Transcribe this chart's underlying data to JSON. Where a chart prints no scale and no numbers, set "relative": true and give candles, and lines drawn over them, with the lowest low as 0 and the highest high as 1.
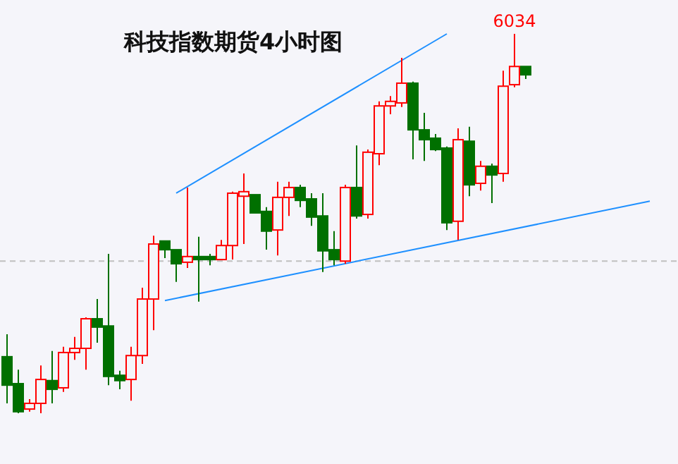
{
  "chart_data": {
    "type": "candlestick",
    "title": "科技指数期货4小时图",
    "relative": true,
    "categories": [
      null,
      null,
      null,
      null,
      null,
      null,
      null,
      null,
      null,
      null,
      null,
      null,
      null,
      null,
      null,
      null,
      null,
      null,
      null,
      null,
      null,
      null,
      null,
      null,
      null,
      null,
      null,
      null,
      null,
      null,
      null,
      null,
      null,
      null,
      null,
      null,
      null,
      null,
      null,
      null,
      null,
      null,
      null,
      null,
      null,
      null,
      null,
      null,
      null,
      null,
      null,
      null,
      null,
      null,
      null,
      null,
      null,
      null
    ],
    "ohlc": [
      [
        0.149,
        0.208,
        0.026,
        0.074
      ],
      [
        0.078,
        0.115,
        0,
        0.004
      ],
      [
        0.011,
        0.037,
        0.004,
        0.026
      ],
      [
        0.026,
        0.126,
        0,
        0.089
      ],
      [
        0.086,
        0.164,
        0.026,
        0.063
      ],
      [
        0.067,
        0.175,
        0.056,
        0.16
      ],
      [
        0.16,
        0.201,
        0.141,
        0.171
      ],
      [
        0.171,
        0.253,
        0.115,
        0.249
      ],
      [
        0.249,
        0.301,
        0.186,
        0.227
      ],
      [
        0.23,
        0.42,
        0.074,
        0.097
      ],
      [
        0.1,
        0.112,
        0.063,
        0.086
      ],
      [
        0.089,
        0.175,
        0.033,
        0.152
      ],
      [
        0.152,
        0.331,
        0.13,
        0.301
      ],
      [
        0.301,
        0.468,
        0.219,
        0.446
      ],
      [
        0.454,
        0.454,
        0.409,
        0.431
      ],
      [
        0.431,
        0.431,
        0.346,
        0.394
      ],
      [
        0.398,
        0.595,
        0.383,
        0.413
      ],
      [
        0.413,
        0.465,
        0.294,
        0.405
      ],
      [
        0.413,
        0.42,
        0.39,
        0.405
      ],
      [
        0.405,
        0.457,
        0.405,
        0.442
      ],
      [
        0.442,
        0.584,
        0.405,
        0.58
      ],
      [
        0.572,
        0.632,
        0.446,
        0.584
      ],
      [
        0.576,
        0.576,
        0.528,
        0.528
      ],
      [
        0.532,
        0.543,
        0.431,
        0.48
      ],
      [
        0.483,
        0.61,
        0.416,
        0.569
      ],
      [
        0.569,
        0.61,
        0.52,
        0.595
      ],
      [
        0.595,
        0.602,
        0.543,
        0.561
      ],
      [
        0.565,
        0.58,
        0.494,
        0.517
      ],
      [
        0.52,
        0.58,
        0.372,
        0.428
      ],
      [
        0.431,
        0.48,
        0.39,
        0.405
      ],
      [
        0.401,
        0.602,
        0.394,
        0.595
      ],
      [
        0.595,
        0.706,
        0.513,
        0.52
      ],
      [
        0.524,
        0.695,
        0.513,
        0.688
      ],
      [
        0.684,
        0.822,
        0.654,
        0.81
      ],
      [
        0.81,
        0.836,
        0.788,
        0.822
      ],
      [
        0.818,
        0.937,
        0.807,
        0.87
      ],
      [
        0.87,
        0.874,
        0.669,
        0.747
      ],
      [
        0.747,
        0.792,
        0.665,
        0.721
      ],
      [
        0.725,
        0.736,
        0.691,
        0.695
      ],
      [
        0.699,
        0.703,
        0.483,
        0.502
      ],
      [
        0.506,
        0.751,
        0.457,
        0.721
      ],
      [
        0.717,
        0.755,
        0.572,
        0.602
      ],
      [
        0.606,
        0.665,
        0.587,
        0.651
      ],
      [
        0.651,
        0.658,
        0.554,
        0.628
      ],
      [
        0.632,
        0.903,
        0.61,
        0.862
      ],
      [
        0.866,
        1,
        0.859,
        0.914
      ],
      [
        0.914,
        0.914,
        0.881,
        0.892
      ],
      null,
      null,
      null,
      null,
      null,
      null,
      null,
      null,
      null,
      null,
      null
    ],
    "series": [
      {
        "type": "line",
        "color": "#1e90ff",
        "values": [
          null,
          null,
          null,
          null,
          null,
          null,
          null,
          null,
          null,
          null,
          null,
          null,
          null,
          null,
          null,
          0.58,
          null,
          null,
          null,
          null,
          null,
          null,
          null,
          null,
          null,
          null,
          null,
          null,
          null,
          null,
          null,
          null,
          null,
          null,
          null,
          null,
          null,
          null,
          null,
          1,
          null,
          null,
          null,
          null,
          null,
          null,
          null,
          null,
          null,
          null,
          null,
          null,
          null,
          null,
          null,
          null,
          null,
          null
        ]
      },
      {
        "type": "line",
        "color": "#1e90ff",
        "values": [
          null,
          null,
          null,
          null,
          null,
          null,
          null,
          null,
          null,
          null,
          null,
          null,
          null,
          null,
          0.297,
          null,
          null,
          null,
          null,
          null,
          null,
          null,
          null,
          null,
          null,
          null,
          null,
          null,
          null,
          null,
          null,
          null,
          null,
          null,
          null,
          null,
          null,
          null,
          null,
          null,
          null,
          null,
          null,
          null,
          null,
          null,
          null,
          null,
          null,
          null,
          null,
          null,
          null,
          null,
          null,
          null,
          null,
          0.559
        ]
      }
    ],
    "ref_lines": [
      {
        "axis": "y",
        "value": 0.401,
        "color": "#c0c0c0",
        "line_style": "dashed"
      }
    ],
    "annotations": [
      "6034"
    ]
  }
}
